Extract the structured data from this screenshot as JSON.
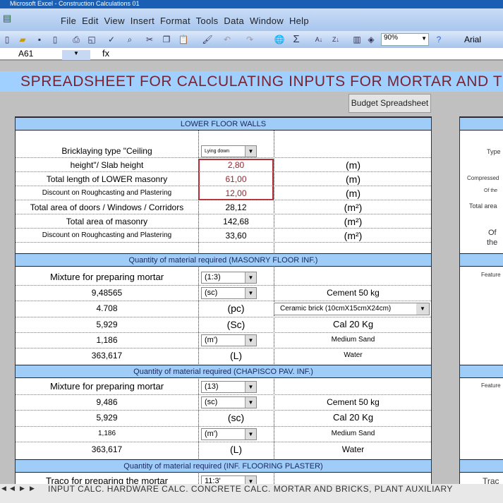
{
  "window": {
    "title": "Microsoft Excel - Construction Calculations 01"
  },
  "menu": [
    "File",
    "Edit",
    "View",
    "Insert",
    "Format",
    "Tools",
    "Data",
    "Window",
    "Help"
  ],
  "toolbar": {
    "zoom": "90%",
    "font": "Arial"
  },
  "formula_bar": {
    "name_box": "A61",
    "fx": "fx"
  },
  "banner": "SPREADSHEET FOR CALCULATING INPUTS FOR MORTAR AND T",
  "budget_button": "Budget Spreadsheet",
  "walls": {
    "header": "LOWER FLOOR WALLS",
    "bricklaying_label": "Bricklaying type \"Ceiling",
    "bricklaying_value": "Lying down",
    "rows": [
      {
        "label": "height\"/ Slab height",
        "value": "2,80",
        "unit": "(m)"
      },
      {
        "label": "Total length of LOWER masonry",
        "value": "61,00",
        "unit": "(m)"
      },
      {
        "label": "Discount on Roughcasting and Plastering",
        "value": "12,00",
        "unit": "(m)"
      },
      {
        "label": "Total area of doors / Windows / Corridors",
        "value": "28,12",
        "unit": "(m²)"
      },
      {
        "label": "Total area of masonry",
        "value": "142,68",
        "unit": "(m²)"
      },
      {
        "label": "Discount on Roughcasting and Plastering",
        "value": "33,60",
        "unit": "(m²)"
      }
    ]
  },
  "masonry": {
    "header": "Quantity of material required (MASONRY FLOOR INF.)",
    "mix_label": "Mixture for preparing mortar",
    "mix_value": "(1:3)",
    "rows": [
      {
        "qty": "9,48565",
        "unit": "(sc)",
        "dropdown": true,
        "material": "Cement 50 kg"
      },
      {
        "qty": "4.708",
        "unit": "(pc)",
        "dropdown": false,
        "material": "Ceramic brick (10cmX15cmX24cm)"
      },
      {
        "qty": "5,929",
        "unit": "(Sc)",
        "dropdown": false,
        "material": "Cal 20 Kg"
      },
      {
        "qty": "1,186",
        "unit": "(m')",
        "dropdown": true,
        "material": "Medium Sand"
      },
      {
        "qty": "363,617",
        "unit": "(L)",
        "dropdown": false,
        "material": "Water"
      }
    ]
  },
  "chapisco": {
    "header": "Quantity of material required (CHAPISCO PAV. INF.)",
    "mix_label": "Mixture for preparing mortar",
    "mix_value": "(13)",
    "rows": [
      {
        "qty": "9,486",
        "unit": "(sc)",
        "material": "Cement 50 kg"
      },
      {
        "qty": "5,929",
        "unit": "(sc)",
        "material": "Cal 20 Kg"
      },
      {
        "qty": "1,186",
        "unit": "(m')",
        "material": "Medium Sand"
      },
      {
        "qty": "363,617",
        "unit": "(L)",
        "material": "Water"
      }
    ]
  },
  "plaster": {
    "header": "Quantity of material required (INF. FLOORING PLASTER)",
    "mix_label": "Traco for preparing the mortar",
    "mix_value": "11:3'"
  },
  "right_panel": [
    "Type",
    "Compressed",
    "Of the",
    "Total area",
    "Of",
    "the",
    "Feature",
    "Feature",
    "Trac"
  ],
  "sheet_tabs": "INPUT CALC. HARDWARE CALC. CONCRETE CALC. MORTAR AND BRICKS, PLANT AUXILIARY"
}
